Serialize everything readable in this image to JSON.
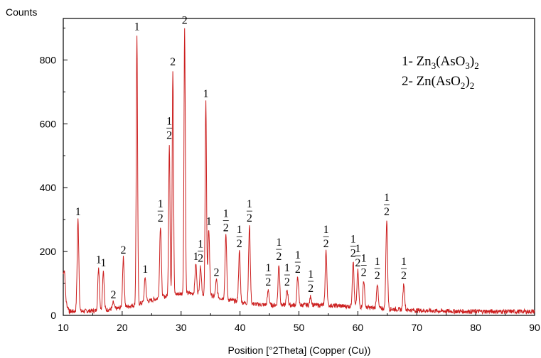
{
  "chart_data": {
    "type": "line",
    "ylabel": "Counts",
    "xlabel": "Position [°2Theta] (Copper (Cu))",
    "xlim": [
      10,
      90
    ],
    "ylim": [
      0,
      930
    ],
    "x_ticks": [
      "10",
      "20",
      "30",
      "40",
      "50",
      "60",
      "70",
      "80",
      "90"
    ],
    "y_ticks": [
      "0",
      "200",
      "400",
      "600",
      "800"
    ],
    "series_color": "#cc1f1f",
    "legend": [
      {
        "prefix": "1- Zn",
        "formula": [
          "3",
          "(AsO",
          "3",
          ")",
          "2"
        ]
      },
      {
        "prefix": "2- Zn(AsO",
        "formula": [
          "2",
          ")",
          "2"
        ]
      }
    ],
    "peaks": [
      {
        "x": 10.2,
        "y": 140
      },
      {
        "x": 12.5,
        "y": 300,
        "label": "1"
      },
      {
        "x": 16.0,
        "y": 150,
        "label": "1"
      },
      {
        "x": 16.8,
        "y": 140,
        "label": "1"
      },
      {
        "x": 18.5,
        "y": 40,
        "label": "2"
      },
      {
        "x": 20.2,
        "y": 180,
        "label": "2"
      },
      {
        "x": 22.5,
        "y": 880,
        "label": "1"
      },
      {
        "x": 23.9,
        "y": 120,
        "label": "1"
      },
      {
        "x": 26.5,
        "y": 280,
        "label": "1/2"
      },
      {
        "x": 28.0,
        "y": 540,
        "label": "1/2"
      },
      {
        "x": 28.6,
        "y": 770,
        "label": "2"
      },
      {
        "x": 30.6,
        "y": 900,
        "label": "2"
      },
      {
        "x": 32.5,
        "y": 160,
        "label": "1"
      },
      {
        "x": 33.3,
        "y": 155,
        "label": "1/2"
      },
      {
        "x": 34.2,
        "y": 670,
        "label": "1"
      },
      {
        "x": 34.7,
        "y": 270,
        "label": "1"
      },
      {
        "x": 36.0,
        "y": 110,
        "label": "2"
      },
      {
        "x": 37.6,
        "y": 250,
        "label": "1/2"
      },
      {
        "x": 39.9,
        "y": 200,
        "label": "1/2"
      },
      {
        "x": 41.6,
        "y": 280,
        "label": "1/2"
      },
      {
        "x": 44.8,
        "y": 80,
        "label": "1/2"
      },
      {
        "x": 46.6,
        "y": 160,
        "label": "1/2"
      },
      {
        "x": 48.0,
        "y": 80,
        "label": "1/2"
      },
      {
        "x": 49.8,
        "y": 120,
        "label": "1/2"
      },
      {
        "x": 52.0,
        "y": 60,
        "label": "1/2"
      },
      {
        "x": 54.6,
        "y": 200,
        "label": "1/2"
      },
      {
        "x": 59.2,
        "y": 170,
        "label": "1/2"
      },
      {
        "x": 60.0,
        "y": 140,
        "label": "1/2"
      },
      {
        "x": 61.0,
        "y": 110,
        "label": "1/2"
      },
      {
        "x": 63.3,
        "y": 100,
        "label": "1/2"
      },
      {
        "x": 64.9,
        "y": 300,
        "label": "1/2"
      },
      {
        "x": 67.8,
        "y": 100,
        "label": "1/2"
      }
    ]
  }
}
